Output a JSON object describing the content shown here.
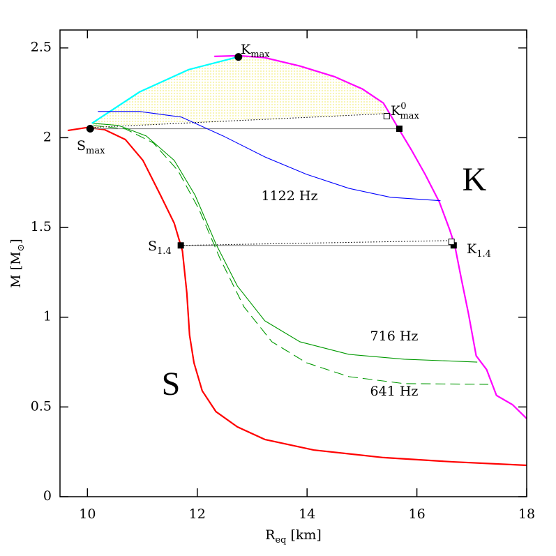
{
  "chart_data": {
    "type": "line",
    "xlabel": {
      "text": "R",
      "sub": "eq",
      "after": " [km]"
    },
    "ylabel": {
      "text": "M [M",
      "sub": "⊙",
      "after": "]"
    },
    "xlim": [
      9.5,
      18
    ],
    "ylim": [
      0,
      2.6
    ],
    "xticks": [
      10,
      12,
      14,
      16,
      18
    ],
    "yticks": [
      0,
      0.5,
      1,
      1.5,
      2,
      2.5
    ],
    "region_color": "#f2ee80",
    "series": [
      {
        "name": "S",
        "color": "#ff0000",
        "style": "thick",
        "x": [
          9.64,
          10.0,
          10.31,
          10.69,
          11.01,
          11.33,
          11.58,
          11.73,
          11.81,
          11.86,
          11.94,
          12.09,
          12.34,
          12.73,
          13.23,
          14.12,
          15.39,
          16.66,
          18.0
        ],
        "values": [
          2.04,
          2.057,
          2.045,
          1.99,
          1.874,
          1.68,
          1.524,
          1.369,
          1.135,
          0.9,
          0.746,
          0.59,
          0.474,
          0.389,
          0.319,
          0.26,
          0.218,
          0.194,
          0.175
        ]
      },
      {
        "name": "K",
        "color": "#ff00ff",
        "style": "thick",
        "x": [
          12.31,
          12.76,
          13.23,
          13.87,
          14.5,
          15.01,
          15.39,
          15.67,
          15.9,
          16.15,
          16.41,
          16.6,
          16.69,
          16.81,
          16.94,
          17.08,
          17.27,
          17.45,
          17.74,
          18.0
        ],
        "values": [
          2.453,
          2.457,
          2.446,
          2.399,
          2.34,
          2.271,
          2.193,
          2.049,
          1.932,
          1.796,
          1.641,
          1.485,
          1.4,
          1.213,
          1.019,
          0.785,
          0.708,
          0.564,
          0.513,
          0.435
        ]
      },
      {
        "color": "#00ffff",
        "style": "thick",
        "x": [
          10.08,
          10.95,
          11.84,
          12.73
        ],
        "values": [
          2.08,
          2.255,
          2.379,
          2.449
        ]
      },
      {
        "color": "#000000",
        "style": "dotted",
        "x": [
          10.08,
          12.22,
          14.12,
          15.43
        ],
        "values": [
          2.057,
          2.088,
          2.115,
          2.134
        ]
      },
      {
        "color": "#808080",
        "style": "solid",
        "x": [
          10.08,
          15.67
        ],
        "values": [
          2.05,
          2.05
        ]
      },
      {
        "color": "#808080",
        "style": "solid",
        "x": [
          11.7,
          16.67
        ],
        "values": [
          1.4,
          1.4
        ]
      },
      {
        "color": "#000000",
        "style": "dotted",
        "x": [
          11.7,
          16.66
        ],
        "values": [
          1.4,
          1.427
        ]
      },
      {
        "name": "1122 Hz",
        "color": "#0000ff",
        "style": "solid",
        "x": [
          10.19,
          10.95,
          11.71,
          12.47,
          13.23,
          13.99,
          14.76,
          15.52,
          16.43
        ],
        "values": [
          2.146,
          2.146,
          2.115,
          2.01,
          1.893,
          1.796,
          1.718,
          1.668,
          1.649
        ]
      },
      {
        "name": "716 Hz",
        "color": "#009900",
        "style": "solid",
        "x": [
          10.11,
          10.57,
          11.07,
          11.58,
          11.96,
          12.34,
          12.73,
          13.23,
          13.87,
          14.76,
          15.77,
          17.1
        ],
        "values": [
          2.08,
          2.068,
          2.01,
          1.874,
          1.68,
          1.408,
          1.174,
          0.98,
          0.863,
          0.793,
          0.766,
          0.75
        ]
      },
      {
        "name": "641 Hz",
        "color": "#009900",
        "style": "dashed",
        "x": [
          10.11,
          10.69,
          11.2,
          11.65,
          12.03,
          12.41,
          12.85,
          13.36,
          13.99,
          14.76,
          15.77,
          17.3
        ],
        "values": [
          2.068,
          2.049,
          1.971,
          1.816,
          1.602,
          1.33,
          1.058,
          0.863,
          0.746,
          0.669,
          0.63,
          0.626
        ]
      }
    ],
    "points": [
      {
        "label": {
          "text": "S",
          "sub": "max"
        },
        "x": 10.05,
        "y": 2.05,
        "marker": "circle"
      },
      {
        "label": {
          "text": "K",
          "sub": "max"
        },
        "x": 12.75,
        "y": 2.45,
        "marker": "circle"
      },
      {
        "label": {
          "text": "K",
          "sup": "0",
          "sub": "max"
        },
        "x": 15.45,
        "y": 2.12,
        "marker": "open-square"
      },
      {
        "x": 15.68,
        "y": 2.05,
        "marker": "square"
      },
      {
        "label": {
          "text": "S",
          "sub": "1.4"
        },
        "x": 11.7,
        "y": 1.4,
        "marker": "square"
      },
      {
        "label": {
          "text": "K",
          "sub": "1.4"
        },
        "x": 16.67,
        "y": 1.4,
        "marker": "square"
      },
      {
        "x": 16.63,
        "y": 1.42,
        "marker": "open-square"
      }
    ]
  }
}
